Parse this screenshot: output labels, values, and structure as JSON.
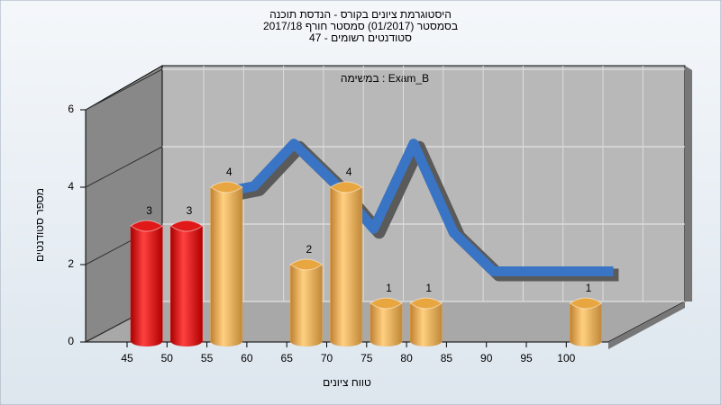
{
  "chart_data": {
    "type": "bar",
    "title": "היסטוגרמת ציונים בקורס - הנדסת תוכנה",
    "subtitle": "בסמסטר  (01/2017)  סמסטר חורף 2017/18",
    "subtitle2": "סטודנטים רשומים - 47",
    "annotation": "במשימה : Exam_B",
    "x_label": "טווח ציונים",
    "y_label": "מספר סטודנטים",
    "categories": [
      "45",
      "50",
      "55",
      "60",
      "65",
      "70",
      "75",
      "80",
      "85",
      "90",
      "95",
      "100"
    ],
    "series": [
      {
        "values": [
          3,
          3,
          4,
          0,
          2,
          4,
          1,
          1,
          0,
          0,
          0,
          1
        ],
        "colors": [
          "#e01818",
          "#e01818",
          "#e8a640",
          "#e8a640",
          "#e8a640",
          "#e8a640",
          "#e8a640",
          "#e8a640",
          "#e8a640",
          "#e8a640",
          "#e8a640",
          "#e8a640"
        ]
      },
      {
        "type": "line",
        "color": "#3a74c4",
        "values": [
          null,
          3.5,
          3.7,
          4.8,
          3.8,
          2.6,
          4.8,
          2.5,
          1.5,
          1.5,
          1.5,
          1.5
        ]
      }
    ],
    "ylim": [
      0,
      6
    ],
    "yticks": [
      0,
      2,
      4,
      6
    ],
    "grid": true
  }
}
